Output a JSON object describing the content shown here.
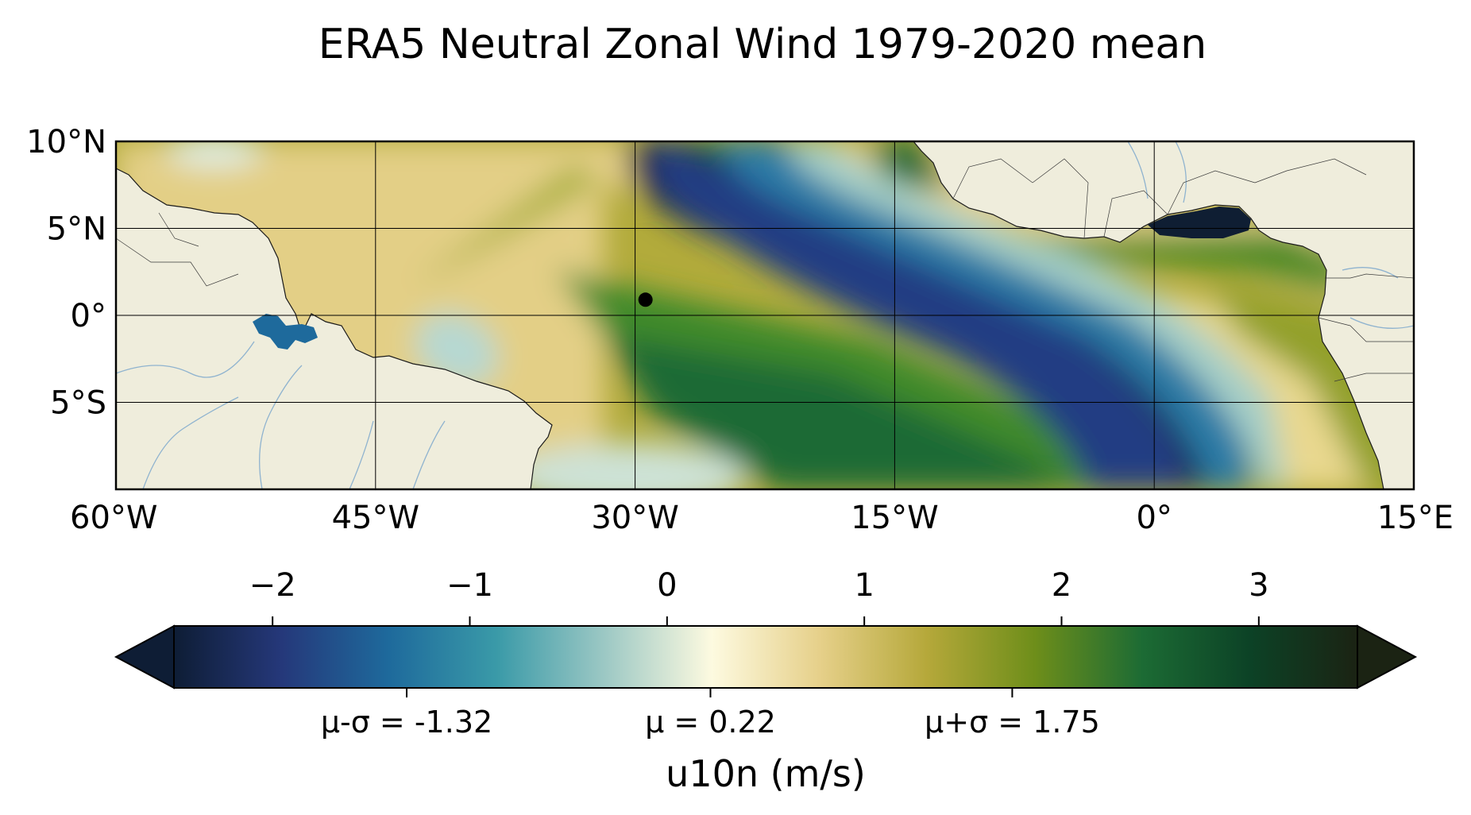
{
  "title": "ERA5 Neutral Zonal Wind 1979-2020 mean",
  "map": {
    "lon_range": [
      -60,
      15
    ],
    "lat_range": [
      -10,
      10
    ],
    "lon_ticks": [
      {
        "value": -60,
        "label": "60°W"
      },
      {
        "value": -45,
        "label": "45°W"
      },
      {
        "value": -30,
        "label": "30°W"
      },
      {
        "value": -15,
        "label": "15°W"
      },
      {
        "value": 0,
        "label": "0°"
      },
      {
        "value": 15,
        "label": "15°E"
      }
    ],
    "lat_ticks": [
      {
        "value": 10,
        "label": "10°N"
      },
      {
        "value": 5,
        "label": "5°N"
      },
      {
        "value": 0,
        "label": "0°"
      },
      {
        "value": -5,
        "label": "5°S"
      }
    ],
    "gridlines": true,
    "marker": {
      "lon": -29.4,
      "lat": 0.9,
      "color": "#000000"
    },
    "land_color": "#efeddc",
    "coast_color": "#1a1a1a",
    "river_color": "#8fb3cf"
  },
  "colorbar": {
    "min": -2.5,
    "max": 3.5,
    "extend": "both",
    "label": "u10n (m/s)",
    "ticks": [
      {
        "value": -2,
        "label": "−2"
      },
      {
        "value": -1,
        "label": "−1"
      },
      {
        "value": 0,
        "label": "0"
      },
      {
        "value": 1,
        "label": "1"
      },
      {
        "value": 2,
        "label": "2"
      },
      {
        "value": 3,
        "label": "3"
      }
    ],
    "stat_ticks": [
      {
        "value": -1.32,
        "label": "μ-σ = -1.32"
      },
      {
        "value": 0.22,
        "label": "μ = 0.22"
      },
      {
        "value": 1.75,
        "label": "μ+σ = 1.75"
      }
    ],
    "colors": [
      "#0e1d35",
      "#25387a",
      "#1e6a9c",
      "#3a9aa8",
      "#9cc8c4",
      "#fdfae0",
      "#e6d08a",
      "#b5a83a",
      "#6e8e1a",
      "#1c6b34",
      "#0c4226",
      "#1b2313"
    ]
  }
}
